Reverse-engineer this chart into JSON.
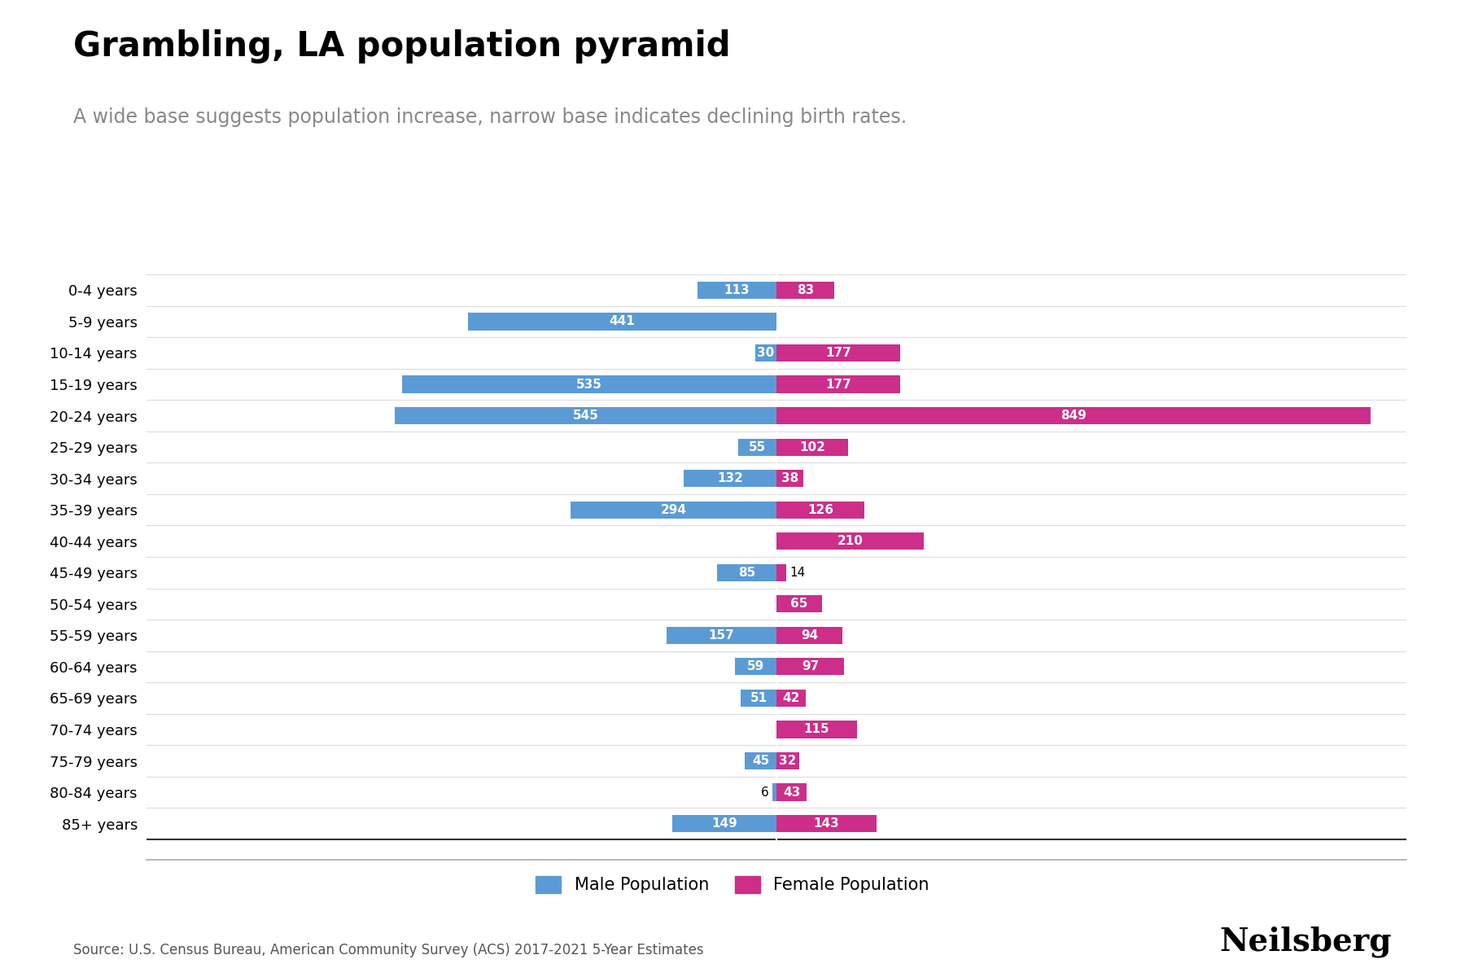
{
  "title": "Grambling, LA population pyramid",
  "subtitle": "A wide base suggests population increase, narrow base indicates declining birth rates.",
  "source": "Source: U.S. Census Bureau, American Community Survey (ACS) 2017-2021 5-Year Estimates",
  "brand": "Neilsberg",
  "age_groups": [
    "0-4 years",
    "5-9 years",
    "10-14 years",
    "15-19 years",
    "20-24 years",
    "25-29 years",
    "30-34 years",
    "35-39 years",
    "40-44 years",
    "45-49 years",
    "50-54 years",
    "55-59 years",
    "60-64 years",
    "65-69 years",
    "70-74 years",
    "75-79 years",
    "80-84 years",
    "85+ years"
  ],
  "male": [
    113,
    441,
    30,
    535,
    545,
    55,
    132,
    294,
    0,
    85,
    0,
    157,
    59,
    51,
    0,
    45,
    6,
    149
  ],
  "female": [
    83,
    0,
    177,
    177,
    849,
    102,
    38,
    126,
    210,
    14,
    65,
    94,
    97,
    42,
    115,
    32,
    43,
    143
  ],
  "male_color": "#5B9BD5",
  "female_color": "#CC2E8A",
  "background_color": "#FFFFFF",
  "bar_height": 0.55,
  "max_val": 900,
  "title_fontsize": 30,
  "subtitle_fontsize": 17,
  "bar_label_fontsize": 11,
  "tick_fontsize": 13,
  "legend_fontsize": 15,
  "source_fontsize": 12,
  "brand_fontsize": 28
}
